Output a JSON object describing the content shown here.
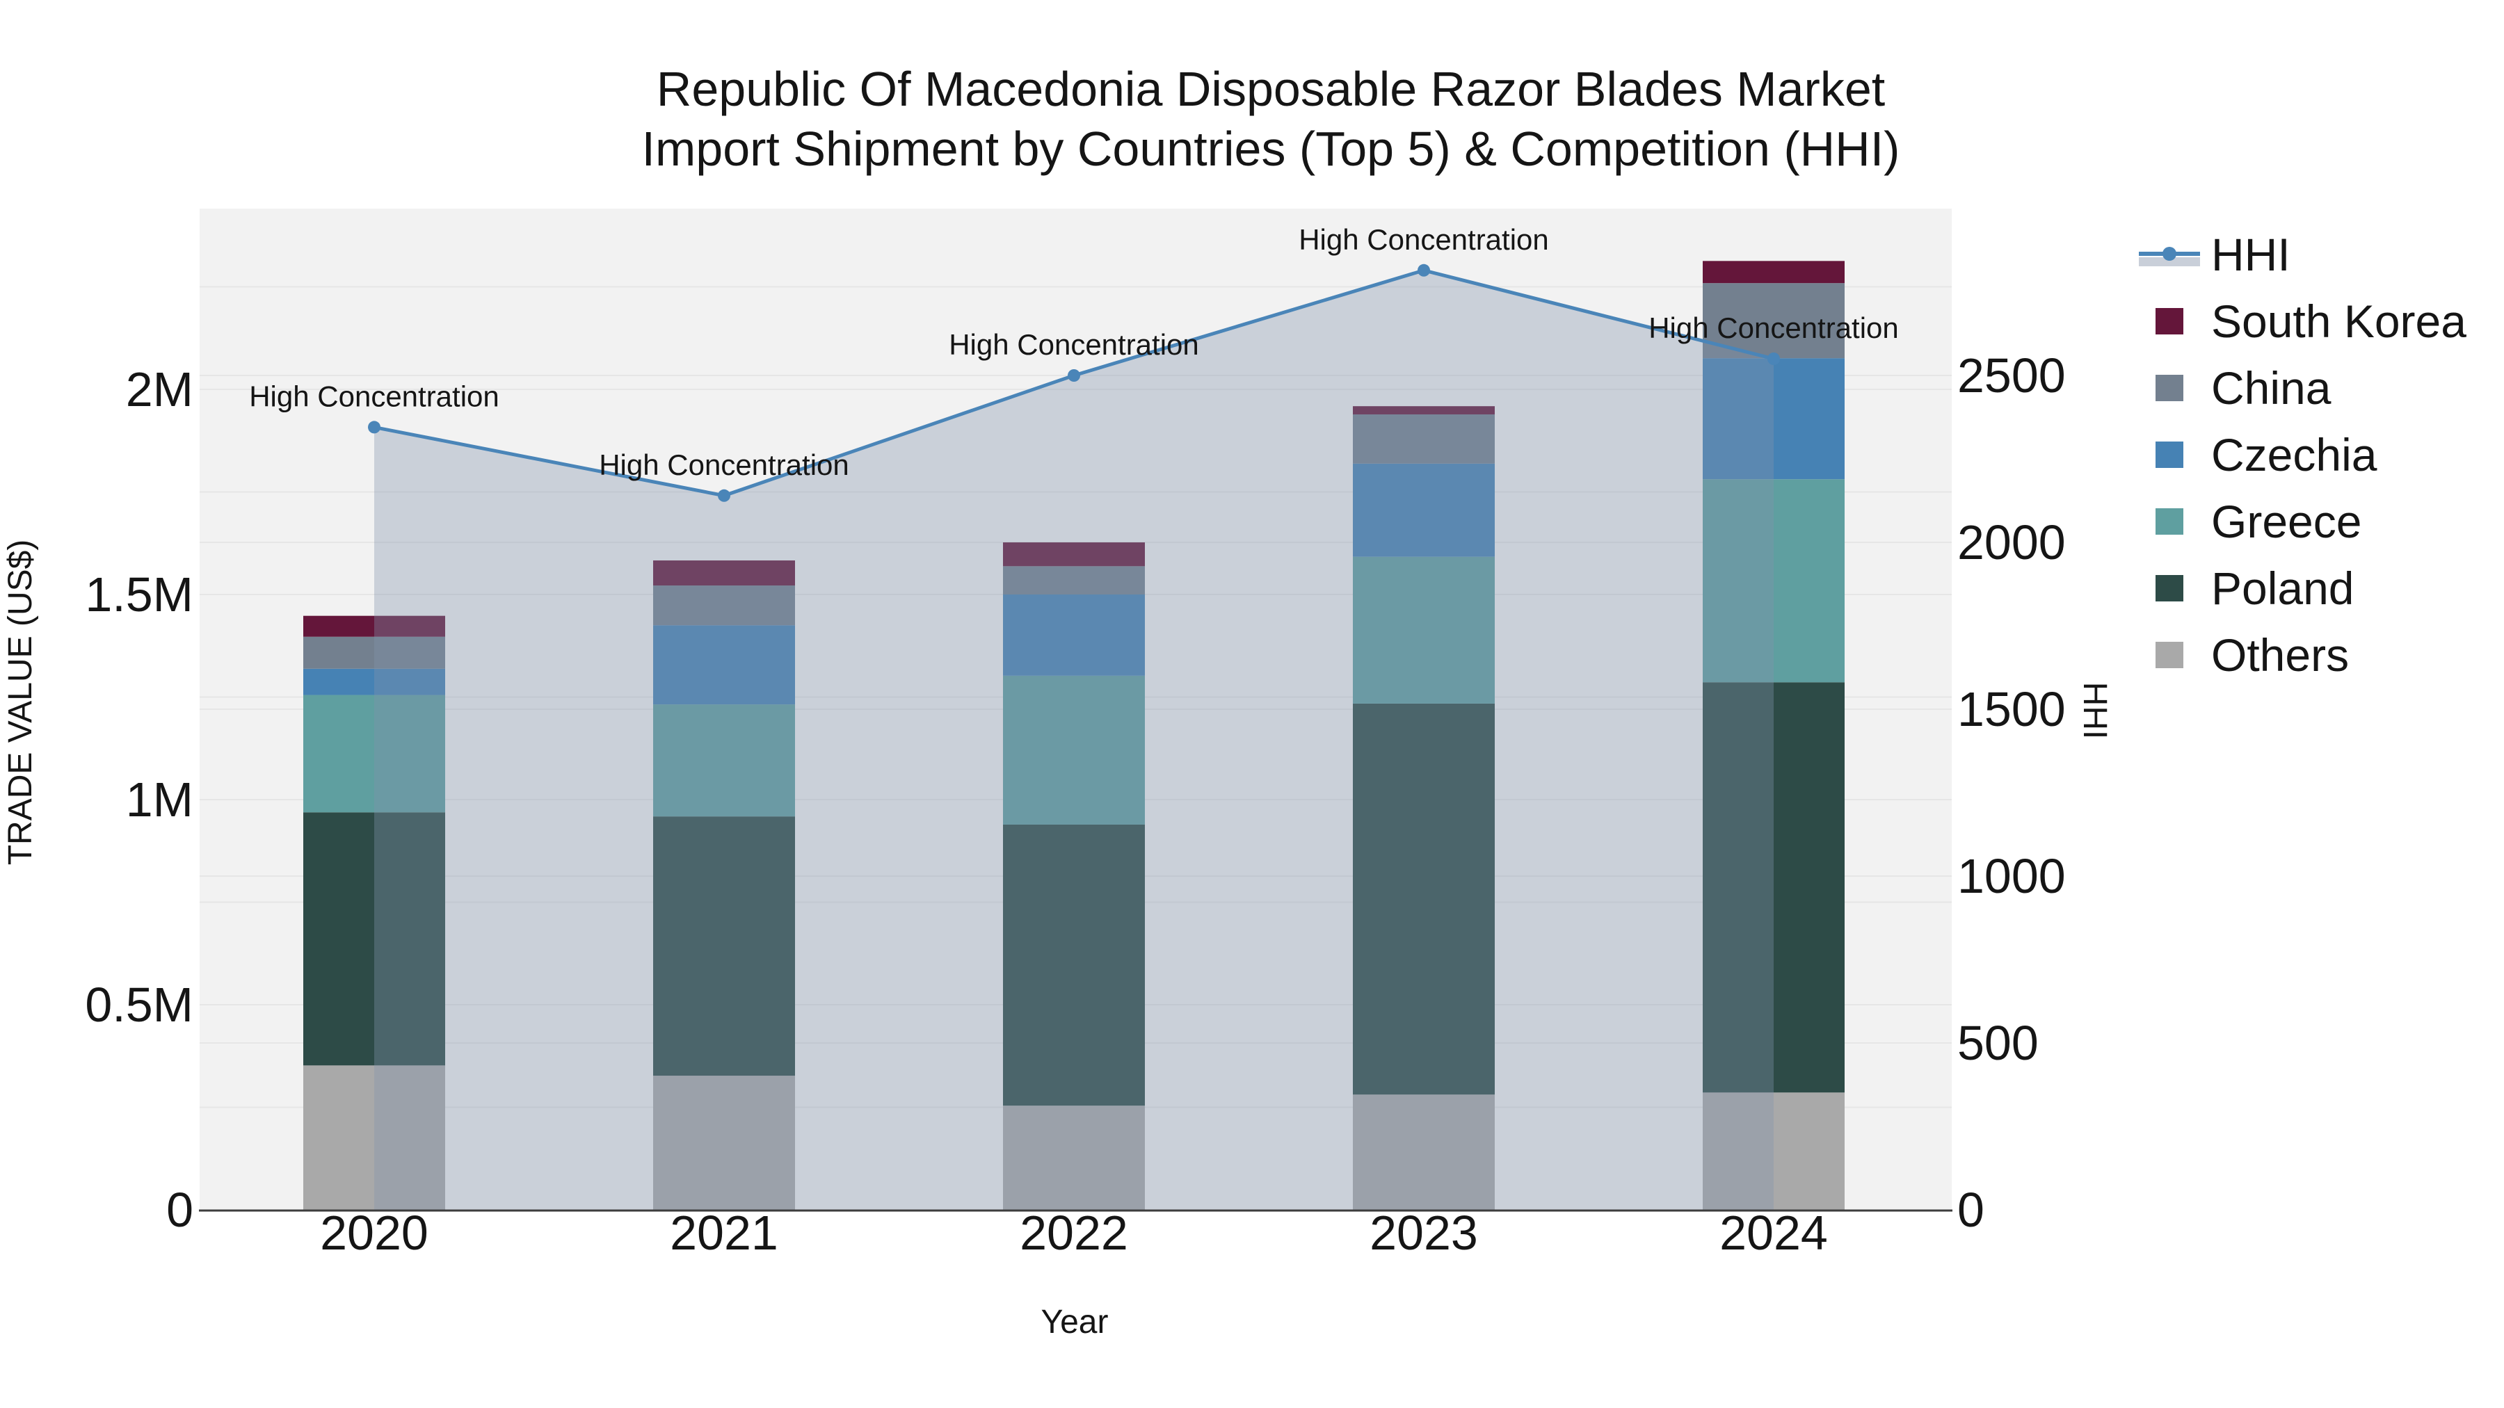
{
  "title": {
    "line1": "Republic Of Macedonia Disposable Razor Blades Market",
    "line2": "Import Shipment by Countries (Top 5) & Competition (HHI)"
  },
  "axes": {
    "x": {
      "title": "Year",
      "tick_labels": [
        "2020",
        "2021",
        "2022",
        "2023",
        "2024"
      ]
    },
    "y_left": {
      "title": "TRADE VALUE (US$)",
      "tick_labels": [
        "0",
        "0.5M",
        "1M",
        "1.5M",
        "2M"
      ],
      "tick_values_musd": [
        0,
        0.5,
        1,
        1.5,
        2
      ]
    },
    "y_right": {
      "title": "HHI",
      "tick_labels": [
        "0",
        "500",
        "1000",
        "1500",
        "2000",
        "2500"
      ],
      "tick_values": [
        0,
        500,
        1000,
        1500,
        2000,
        2500
      ]
    }
  },
  "legend": {
    "items": [
      {
        "label": "HHI",
        "kind": "line",
        "line_color": "#4a85b8",
        "band_color": "#c9cfd9"
      },
      {
        "label": "South Korea",
        "kind": "rect",
        "color": "#64163a"
      },
      {
        "label": "China",
        "kind": "rect",
        "color": "#73808f"
      },
      {
        "label": "Czechia",
        "kind": "rect",
        "color": "#4682b4"
      },
      {
        "label": "Greece",
        "kind": "rect",
        "color": "#5f9fa0"
      },
      {
        "label": "Poland",
        "kind": "rect",
        "color": "#2d4b47"
      },
      {
        "label": "Others",
        "kind": "rect",
        "color": "#a9a9a9"
      }
    ]
  },
  "chart_data": {
    "type": "bar",
    "subtype": "stacked-bar-with-line",
    "title": "Republic Of Macedonia Disposable Razor Blades Market Import Shipment by Countries (Top 5) & Competition (HHI)",
    "xlabel": "Year",
    "ylabel_left": "TRADE VALUE (US$)",
    "ylabel_right": "HHI",
    "unit_left": "million US$",
    "ylim_left_musd": [
      0,
      2.44
    ],
    "ylim_right_hhi": [
      0,
      3000
    ],
    "grid": true,
    "legend_position": "right",
    "categories": [
      "2020",
      "2021",
      "2022",
      "2023",
      "2024"
    ],
    "stack_order_bottom_to_top": [
      "Others",
      "Poland",
      "Greece",
      "Czechia",
      "China",
      "South Korea"
    ],
    "series": [
      {
        "name": "South Korea",
        "type": "bar",
        "color": "#64163a",
        "values_musd": [
          0.051,
          0.061,
          0.058,
          0.02,
          0.054
        ]
      },
      {
        "name": "China",
        "type": "bar",
        "color": "#73808f",
        "values_musd": [
          0.078,
          0.097,
          0.069,
          0.12,
          0.183
        ]
      },
      {
        "name": "Czechia",
        "type": "bar",
        "color": "#4682b4",
        "values_musd": [
          0.064,
          0.193,
          0.198,
          0.227,
          0.295
        ]
      },
      {
        "name": "Greece",
        "type": "bar",
        "color": "#5f9fa0",
        "values_musd": [
          0.286,
          0.273,
          0.363,
          0.358,
          0.495
        ]
      },
      {
        "name": "Poland",
        "type": "bar",
        "color": "#2d4b47",
        "values_musd": [
          0.617,
          0.632,
          0.685,
          0.953,
          1.0
        ]
      },
      {
        "name": "Others",
        "type": "bar",
        "color": "#a9a9a9",
        "values_musd": [
          0.352,
          0.327,
          0.254,
          0.281,
          0.286
        ]
      },
      {
        "name": "HHI",
        "type": "line",
        "color": "#4a85b8",
        "area_color": "rgba(130,148,172,0.36)",
        "values": [
          2345,
          2140,
          2500,
          2815,
          2550
        ]
      }
    ],
    "stack_totals_musd": [
      1.448,
      1.583,
      1.627,
      1.959,
      2.313
    ],
    "annotations": [
      "High Concentration",
      "High Concentration",
      "High Concentration",
      "High Concentration",
      "High Concentration"
    ]
  },
  "style": {
    "plot_bg": "#f2f2f2",
    "gridline": "#e6e6e6",
    "axis_line": "#3d3d3d",
    "text": "#151515"
  }
}
